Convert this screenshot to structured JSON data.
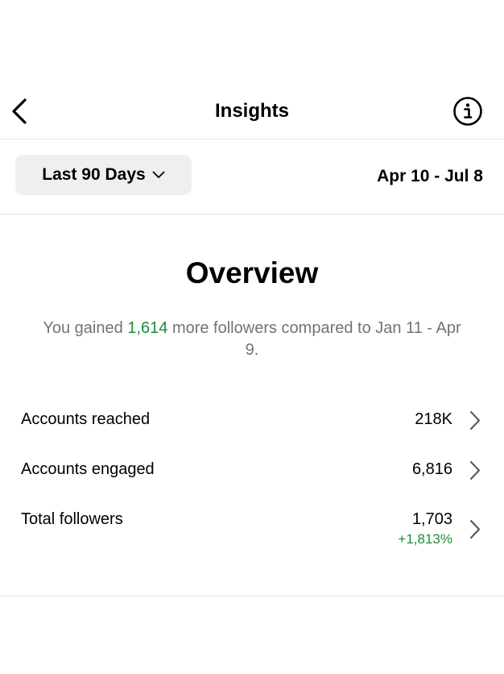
{
  "header": {
    "title": "Insights"
  },
  "filter": {
    "label": "Last 90 Days",
    "date_range": "Apr 10 - Jul 8"
  },
  "overview": {
    "title": "Overview",
    "summary": {
      "prefix": "You gained",
      "highlight": "1,614",
      "suffix": "more followers compared to Jan 11 - Apr 9."
    }
  },
  "metrics": [
    {
      "label": "Accounts reached",
      "value": "218K"
    },
    {
      "label": "Accounts engaged",
      "value": "6,816"
    },
    {
      "label": "Total followers",
      "value": "1,703",
      "change": "+1,813%"
    }
  ]
}
